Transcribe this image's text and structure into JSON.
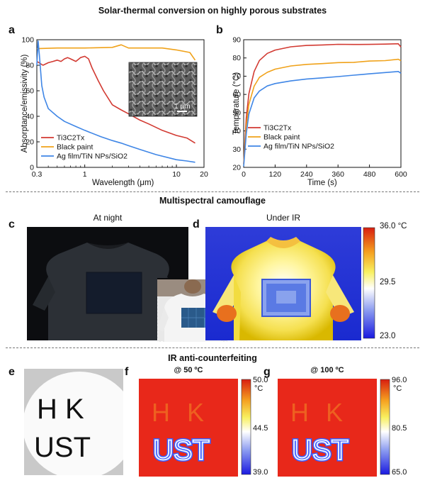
{
  "titles": {
    "top": "Solar-thermal conversion on highly porous substrates",
    "middle": "Multispectral camouflage",
    "bottom": "IR anti-counterfeiting"
  },
  "panels": {
    "a": "a",
    "b": "b",
    "c": "c",
    "d": "d",
    "e": "e",
    "f": "f",
    "g": "g"
  },
  "photos": {
    "c_label": "At night",
    "d_label": "Under IR",
    "f_label": "@ 50 ºC",
    "g_label": "@ 100 ºC",
    "sem_scale": "1 μm",
    "marker_text": [
      "H K",
      "UST"
    ],
    "d_colorbar": {
      "max": "36.0 °C",
      "mid": "29.5",
      "min": "23.0"
    },
    "f_colorbar": {
      "max": "50.0",
      "unit": "°C",
      "mid": "44.5",
      "min": "39.0"
    },
    "g_colorbar": {
      "max": "96.0",
      "unit": "°C",
      "mid": "80.5",
      "min": "65.0"
    }
  },
  "colors": {
    "ti3c2tx": "#d23a32",
    "black_paint": "#f0a21a",
    "ag_film": "#3f86e6"
  },
  "chart_data": [
    {
      "id": "a",
      "type": "line",
      "xscale": "log",
      "xlabel": "Wavelength (μm)",
      "ylabel": "Absorptance/emissivity (%)",
      "xlim": [
        0.3,
        20
      ],
      "ylim": [
        0,
        100
      ],
      "xticks": [
        0.3,
        1,
        10,
        20
      ],
      "xtick_labels": [
        "0.3",
        "1",
        "10",
        "20"
      ],
      "yticks": [
        0,
        20,
        40,
        60,
        80,
        100
      ],
      "legend": "bottom-left",
      "series": [
        {
          "name": "Ti3C2Tx",
          "color": "#d23a32",
          "x": [
            0.3,
            0.35,
            0.4,
            0.45,
            0.5,
            0.55,
            0.6,
            0.65,
            0.7,
            0.8,
            0.9,
            1.0,
            1.1,
            1.2,
            1.4,
            1.6,
            2,
            2.5,
            3,
            4,
            5,
            7,
            10,
            13,
            16
          ],
          "y": [
            83,
            80,
            82,
            83,
            84,
            83,
            85,
            86,
            85,
            83,
            86,
            87,
            85,
            78,
            68,
            60,
            49,
            45,
            42,
            37,
            34,
            29,
            25,
            23,
            19
          ]
        },
        {
          "name": "Black paint",
          "color": "#f0a21a",
          "x": [
            0.3,
            0.5,
            1,
            2,
            2.5,
            3,
            4,
            5,
            7,
            10,
            14,
            16
          ],
          "y": [
            93,
            93.5,
            93.5,
            94,
            96,
            93.5,
            93.5,
            93.5,
            93.5,
            92,
            90,
            84
          ]
        },
        {
          "name": "Ag film/TiN NPs/SiO2",
          "color": "#3f86e6",
          "x": [
            0.3,
            0.31,
            0.32,
            0.34,
            0.36,
            0.4,
            0.5,
            0.6,
            0.8,
            1,
            1.5,
            2,
            2.5,
            3,
            4,
            6,
            10,
            13,
            16
          ],
          "y": [
            80,
            99,
            88,
            64,
            55,
            46,
            40,
            36,
            32,
            29,
            24,
            21,
            19,
            17,
            14,
            10,
            6,
            5,
            4
          ]
        }
      ]
    },
    {
      "id": "b",
      "type": "line",
      "xlabel": "Time (s)",
      "ylabel": "Temperature (°C)",
      "xlim": [
        0,
        600
      ],
      "ylim": [
        20,
        90
      ],
      "xticks": [
        0,
        120,
        240,
        360,
        480,
        600
      ],
      "yticks": [
        20,
        30,
        40,
        50,
        60,
        70,
        80,
        90
      ],
      "legend": "bottom-left",
      "series": [
        {
          "name": "Ti3C2Tx",
          "color": "#d23a32",
          "x": [
            0,
            10,
            20,
            40,
            60,
            90,
            120,
            180,
            240,
            300,
            360,
            420,
            480,
            540,
            590,
            600
          ],
          "y": [
            22,
            47,
            60,
            72,
            78,
            82,
            84,
            86,
            87,
            87.5,
            88,
            88,
            88,
            88,
            88,
            86
          ]
        },
        {
          "name": "Black paint",
          "color": "#f0a21a",
          "x": [
            0,
            10,
            20,
            40,
            60,
            90,
            120,
            180,
            240,
            300,
            360,
            420,
            480,
            540,
            590,
            600
          ],
          "y": [
            21,
            42,
            54,
            64,
            69,
            72,
            74,
            76,
            77,
            77.5,
            78,
            78,
            78.5,
            78.5,
            79,
            78
          ]
        },
        {
          "name": "Ag film/TiN NPs/SiO2",
          "color": "#3f86e6",
          "x": [
            0,
            10,
            20,
            40,
            60,
            90,
            120,
            180,
            240,
            300,
            360,
            420,
            480,
            540,
            590,
            600
          ],
          "y": [
            20,
            38,
            49,
            58,
            62,
            65,
            66.5,
            68,
            69,
            69.5,
            70,
            70.5,
            71,
            71.5,
            72,
            71
          ]
        }
      ]
    }
  ]
}
